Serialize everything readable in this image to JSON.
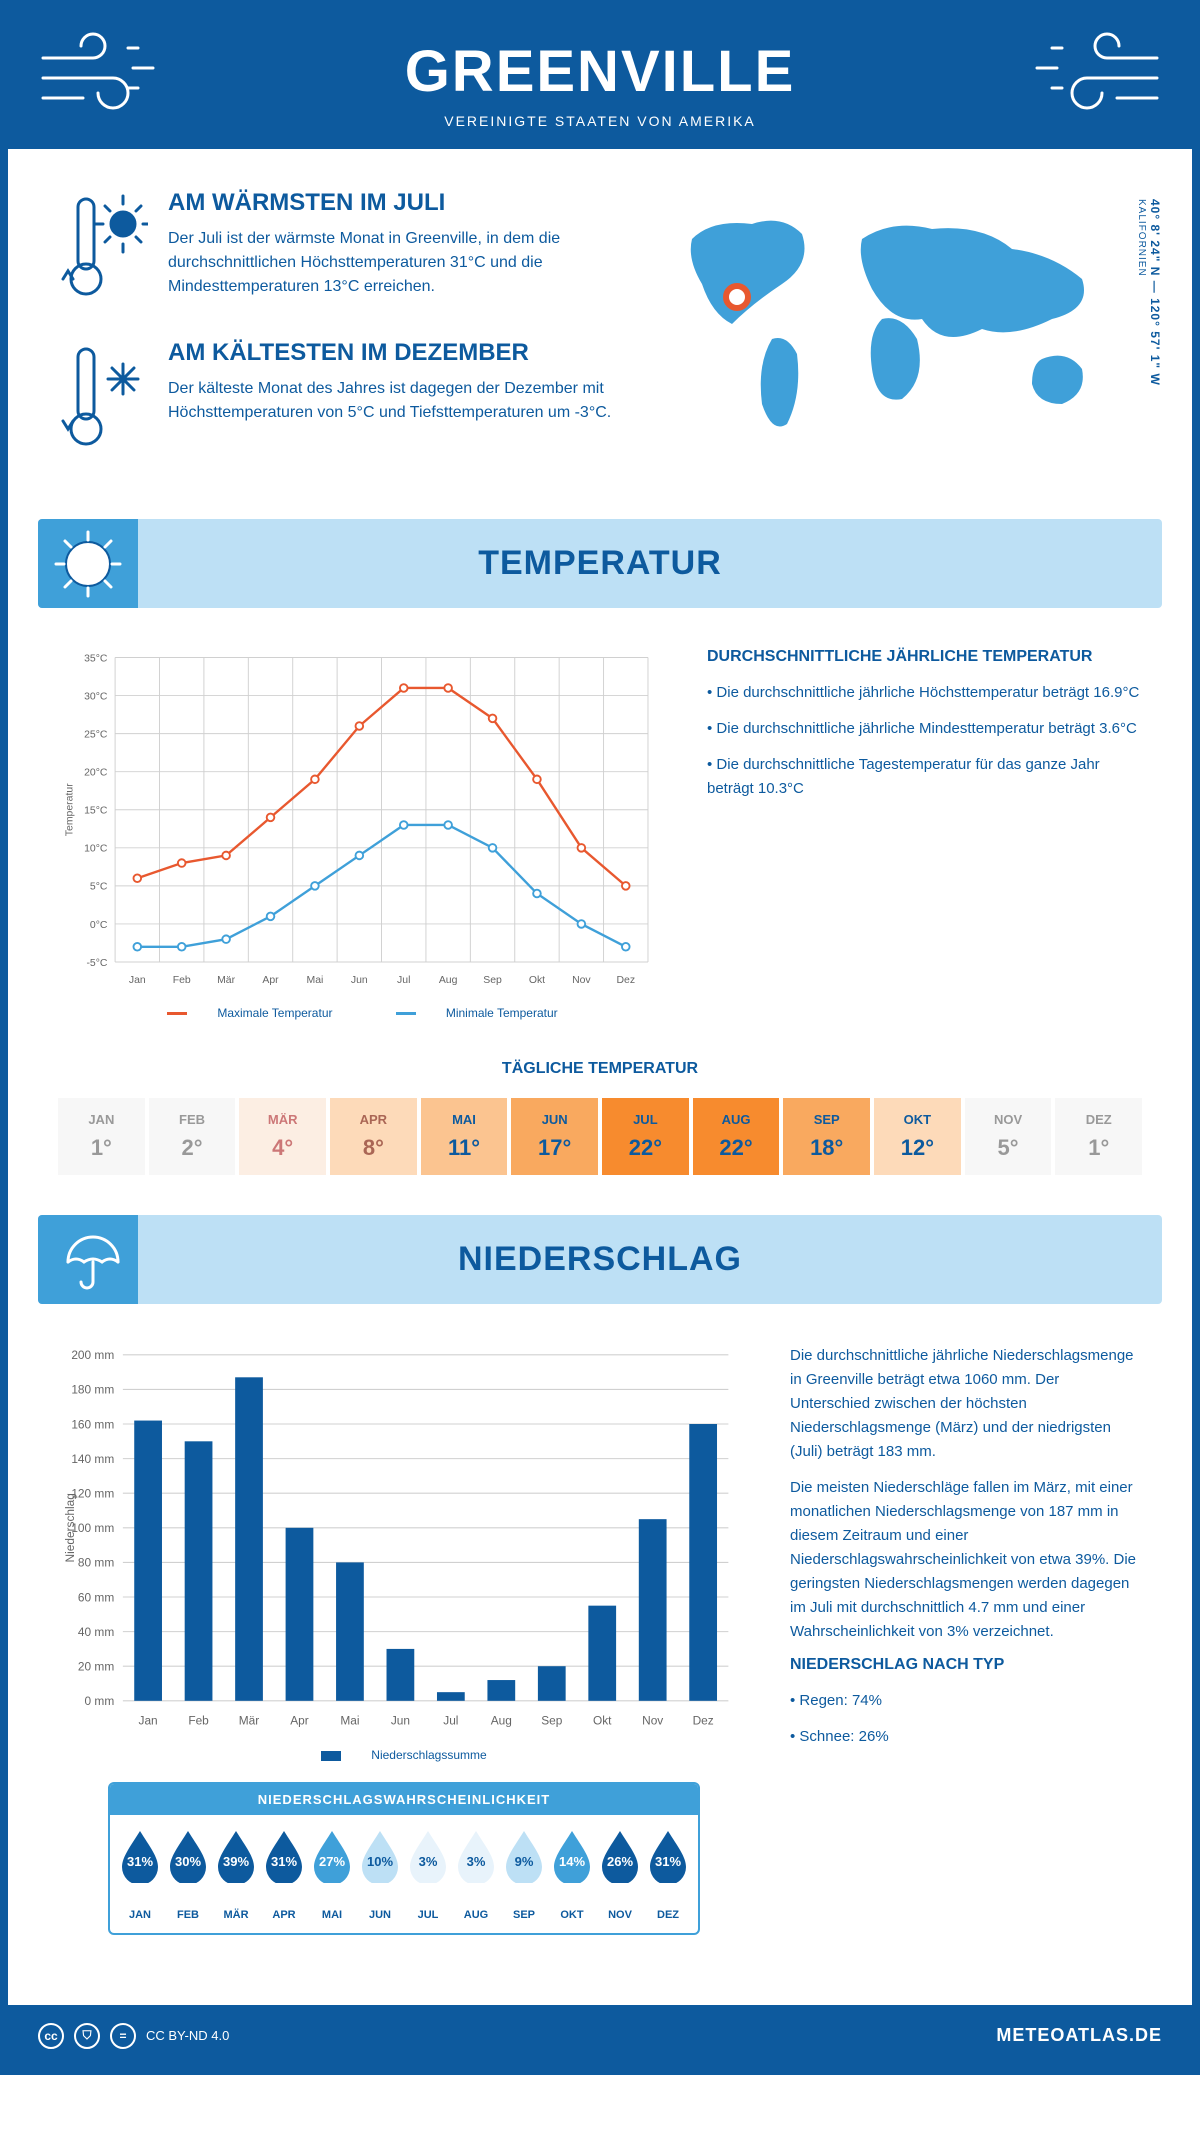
{
  "header": {
    "city": "GREENVILLE",
    "country": "VEREINIGTE STAATEN VON AMERIKA"
  },
  "coords": {
    "lat": "40° 8' 24\" N",
    "lon": "120° 57' 1\" W",
    "region": "KALIFORNIEN"
  },
  "warmest": {
    "title": "AM WÄRMSTEN IM JULI",
    "text": "Der Juli ist der wärmste Monat in Greenville, in dem die durchschnittlichen Höchsttemperaturen 31°C und die Mindesttemperaturen 13°C erreichen."
  },
  "coldest": {
    "title": "AM KÄLTESTEN IM DEZEMBER",
    "text": "Der kälteste Monat des Jahres ist dagegen der Dezember mit Höchsttemperaturen von 5°C und Tiefsttemperaturen um -3°C."
  },
  "temp_section": {
    "title": "TEMPERATUR"
  },
  "temp_chart": {
    "months": [
      "Jan",
      "Feb",
      "Mär",
      "Apr",
      "Mai",
      "Jun",
      "Jul",
      "Aug",
      "Sep",
      "Okt",
      "Nov",
      "Dez"
    ],
    "max": [
      6,
      8,
      9,
      14,
      19,
      26,
      31,
      31,
      27,
      19,
      10,
      5
    ],
    "min": [
      -3,
      -3,
      -2,
      1,
      5,
      9,
      13,
      13,
      10,
      4,
      0,
      -3
    ],
    "ylabel": "Temperatur",
    "ylim": [
      -5,
      35
    ],
    "ytick": 5,
    "max_color": "#e8582f",
    "min_color": "#3fa0d9",
    "grid_color": "#d0d0d0",
    "legend_max": "Maximale Temperatur",
    "legend_min": "Minimale Temperatur"
  },
  "temp_text": {
    "title": "DURCHSCHNITTLICHE JÄHRLICHE TEMPERATUR",
    "b1": "• Die durchschnittliche jährliche Höchsttemperatur beträgt 16.9°C",
    "b2": "• Die durchschnittliche jährliche Mindesttemperatur beträgt 3.6°C",
    "b3": "• Die durchschnittliche Tagestemperatur für das ganze Jahr beträgt 10.3°C"
  },
  "daily_temp": {
    "title": "TÄGLICHE TEMPERATUR",
    "months": [
      "JAN",
      "FEB",
      "MÄR",
      "APR",
      "MAI",
      "JUN",
      "JUL",
      "AUG",
      "SEP",
      "OKT",
      "NOV",
      "DEZ"
    ],
    "values": [
      "1°",
      "2°",
      "4°",
      "8°",
      "11°",
      "17°",
      "22°",
      "22°",
      "18°",
      "12°",
      "5°",
      "1°"
    ],
    "bg_colors": [
      "#f7f7f7",
      "#f7f7f7",
      "#fceee3",
      "#fddab9",
      "#fbc490",
      "#f9a95f",
      "#f78b2e",
      "#f78b2e",
      "#f9a95f",
      "#fddab9",
      "#f7f7f7",
      "#f7f7f7"
    ],
    "text_colors": [
      "#999",
      "#999",
      "#c77",
      "#a65",
      "#0d5a9e",
      "#0d5a9e",
      "#0d5a9e",
      "#0d5a9e",
      "#0d5a9e",
      "#0d5a9e",
      "#999",
      "#999"
    ]
  },
  "precip_section": {
    "title": "NIEDERSCHLAG"
  },
  "precip_chart": {
    "months": [
      "Jan",
      "Feb",
      "Mär",
      "Apr",
      "Mai",
      "Jun",
      "Jul",
      "Aug",
      "Sep",
      "Okt",
      "Nov",
      "Dez"
    ],
    "values": [
      162,
      150,
      187,
      100,
      80,
      30,
      5,
      12,
      20,
      55,
      105,
      160
    ],
    "ylabel": "Niederschlag",
    "ylim": [
      0,
      200
    ],
    "ytick": 20,
    "bar_color": "#0d5a9e",
    "grid_color": "#d0d0d0",
    "legend": "Niederschlagssumme"
  },
  "precip_text": {
    "p1": "Die durchschnittliche jährliche Niederschlagsmenge in Greenville beträgt etwa 1060 mm. Der Unterschied zwischen der höchsten Niederschlagsmenge (März) und der niedrigsten (Juli) beträgt 183 mm.",
    "p2": "Die meisten Niederschläge fallen im März, mit einer monatlichen Niederschlagsmenge von 187 mm in diesem Zeitraum und einer Niederschlagswahrscheinlichkeit von etwa 39%. Die geringsten Niederschlagsmengen werden dagegen im Juli mit durchschnittlich 4.7 mm und einer Wahrscheinlichkeit von 3% verzeichnet.",
    "type_title": "NIEDERSCHLAG NACH TYP",
    "t1": "• Regen: 74%",
    "t2": "• Schnee: 26%"
  },
  "precip_prob": {
    "title": "NIEDERSCHLAGSWAHRSCHEINLICHKEIT",
    "months": [
      "JAN",
      "FEB",
      "MÄR",
      "APR",
      "MAI",
      "JUN",
      "JUL",
      "AUG",
      "SEP",
      "OKT",
      "NOV",
      "DEZ"
    ],
    "values": [
      "31%",
      "30%",
      "39%",
      "31%",
      "27%",
      "10%",
      "3%",
      "3%",
      "9%",
      "14%",
      "26%",
      "31%"
    ],
    "fills": [
      "#0d5a9e",
      "#0d5a9e",
      "#0d5a9e",
      "#0d5a9e",
      "#3fa0d9",
      "#bde0f5",
      "#e8f3fb",
      "#e8f3fb",
      "#bde0f5",
      "#3fa0d9",
      "#0d5a9e",
      "#0d5a9e"
    ],
    "text_colors": [
      "#fff",
      "#fff",
      "#fff",
      "#fff",
      "#fff",
      "#0d5a9e",
      "#0d5a9e",
      "#0d5a9e",
      "#0d5a9e",
      "#fff",
      "#fff",
      "#fff"
    ]
  },
  "footer": {
    "license": "CC BY-ND 4.0",
    "brand": "METEOATLAS.DE"
  }
}
